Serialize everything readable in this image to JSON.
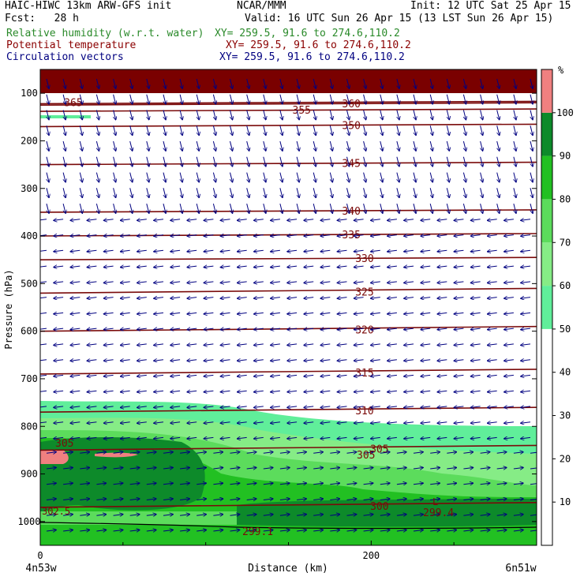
{
  "header": {
    "left1": "HAIC-HIWC 13km ARW-GFS init",
    "center1": "NCAR/MMM",
    "right1": "Init: 12 UTC Sat 25 Apr 15",
    "left2": "Fcst:   28 h",
    "right2": "Valid: 16 UTC Sun 26 Apr 15 (13 LST Sun 26 Apr 15)",
    "rh_label": "Relative humidity (w.r.t. water)",
    "rh_xy": "XY= 259.5, 91.6 to 274.6,110.2",
    "pt_label": "Potential temperature",
    "pt_xy": "XY= 259.5, 91.6 to 274.6,110.2",
    "cv_label": "Circulation vectors",
    "cv_xy": "XY= 259.5, 91.6 to 274.6,110.2"
  },
  "colors": {
    "rh_label": "#2a8a2a",
    "pt_label": "#8b0000",
    "cv_label": "#000080",
    "contour": "#7a0a0a",
    "arrow": "#000080"
  },
  "chart_data": {
    "type": "heatmap",
    "ylabel": "Pressure (hPa)",
    "xlabel": "Distance (km)",
    "x_start_label": "4n53w",
    "x_end_label": "6n51w",
    "xlim": [
      0,
      300
    ],
    "ylim": [
      1050,
      50
    ],
    "x_ticks": [
      0,
      200
    ],
    "y_ticks": [
      100,
      200,
      300,
      400,
      500,
      600,
      700,
      800,
      900,
      1000
    ],
    "colorbar": {
      "unit": "%",
      "levels": [
        10,
        20,
        30,
        40,
        50,
        60,
        70,
        80,
        90,
        100
      ],
      "colors": [
        "#ffffff",
        "#ffffff",
        "#ffffff",
        "#ffffff",
        "#ffffff",
        "#60ee9a",
        "#86ec86",
        "#5cdc5c",
        "#22c022",
        "#0d8a2a",
        "#f08080"
      ]
    },
    "theta_contours": [
      {
        "value": 365,
        "pressure": 122,
        "label": "365",
        "label_x": 20
      },
      {
        "value": 360,
        "pressure": 125,
        "label": "360",
        "label_x": 188
      },
      {
        "value": 355,
        "pressure": 138,
        "label": "355",
        "label_x": 158
      },
      {
        "value": 350,
        "pressure": 170,
        "label": "350",
        "label_x": 188
      },
      {
        "value": 345,
        "pressure": 250,
        "label": "345",
        "label_x": 188
      },
      {
        "value": 340,
        "pressure": 350,
        "label": "340",
        "label_x": 188
      },
      {
        "value": 335,
        "pressure": 400,
        "label": "335",
        "label_x": 188
      },
      {
        "value": 330,
        "pressure": 450,
        "label": "330",
        "label_x": 196
      },
      {
        "value": 325,
        "pressure": 520,
        "label": "325",
        "label_x": 196
      },
      {
        "value": 320,
        "pressure": 600,
        "label": "320",
        "label_x": 196
      },
      {
        "value": 315,
        "pressure": 690,
        "label": "315",
        "label_x": 196
      },
      {
        "value": 310,
        "pressure": 770,
        "label": "310",
        "label_x": 196
      },
      {
        "value": 305,
        "pressure": 850,
        "label": "305",
        "label_x": 205
      },
      {
        "value": 300,
        "pressure": 970,
        "label": "300",
        "label_x": 205
      }
    ],
    "annotations": [
      "305",
      "305",
      "302.5",
      "299.1",
      "299.4",
      "L"
    ]
  }
}
